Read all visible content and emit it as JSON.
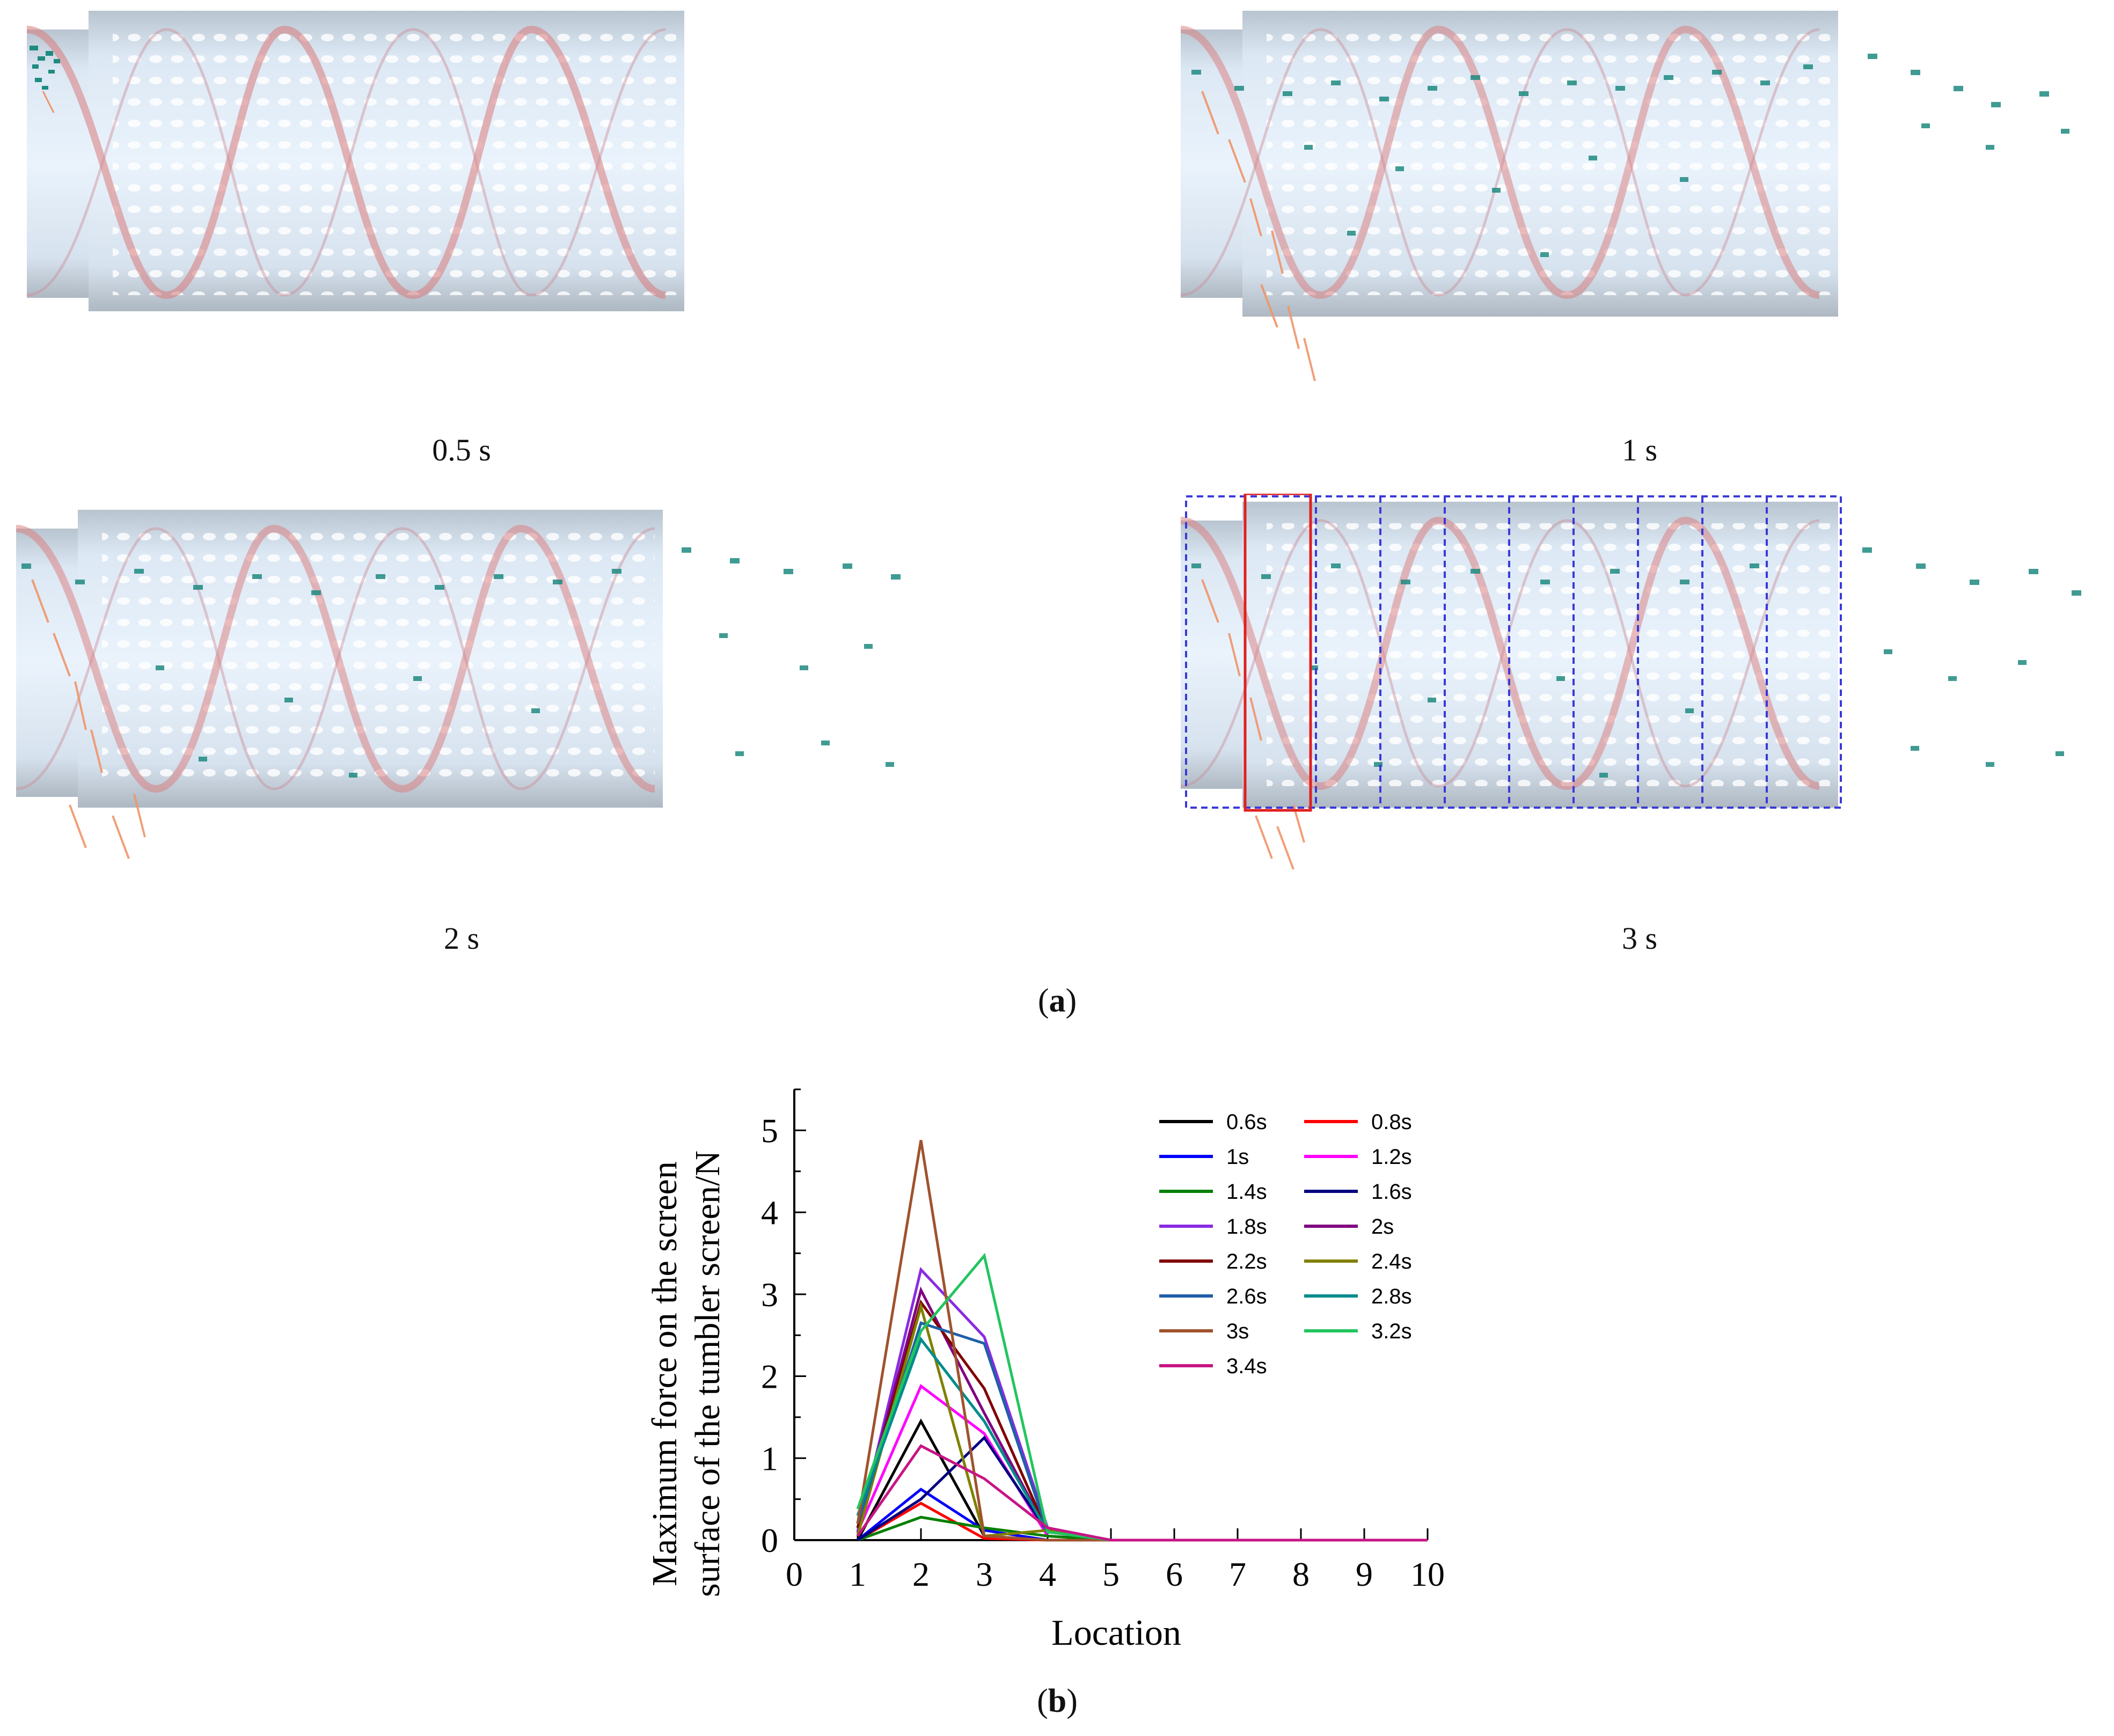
{
  "panel_a": {
    "label": "a",
    "snapshots": [
      {
        "caption": "0.5 s"
      },
      {
        "caption": "1 s"
      },
      {
        "caption": "2 s"
      },
      {
        "caption": "3 s"
      }
    ],
    "colors": {
      "drum": "#c9d6e2",
      "helix": "#d97a7a",
      "particle_teal": "#1f8a80",
      "particle_orange": "#f0956a",
      "grid_box": "#3a3ad8",
      "highlight_box": "#e02020"
    }
  },
  "panel_b": {
    "label": "b"
  },
  "chart_data": {
    "type": "line",
    "title": "",
    "xlabel": "Location",
    "ylabel": "Maximum force on the screen surface of the tumbler screen/N",
    "ylabel_lines": [
      "Maximum force on the screen",
      "surface of the tumbler screen/N"
    ],
    "xlim": [
      0,
      10
    ],
    "ylim": [
      0,
      5.5
    ],
    "xticks": [
      "0",
      "1",
      "2",
      "3",
      "4",
      "5",
      "6",
      "7",
      "8",
      "9",
      "10"
    ],
    "yticks": [
      "0",
      "1",
      "2",
      "3",
      "4",
      "5"
    ],
    "x": [
      1,
      2,
      3,
      4,
      5,
      6,
      7,
      8,
      9,
      10
    ],
    "legend_position": "top-right",
    "series": [
      {
        "name": "0.6s",
        "color": "#000000",
        "values": [
          0,
          1.45,
          0.05,
          0,
          0,
          0,
          0,
          0,
          0,
          0
        ]
      },
      {
        "name": "0.8s",
        "color": "#ff0000",
        "values": [
          0,
          0.45,
          0.02,
          0,
          0,
          0,
          0,
          0,
          0,
          0
        ]
      },
      {
        "name": "1s",
        "color": "#0000ff",
        "values": [
          0,
          0.62,
          0.12,
          0,
          0,
          0,
          0,
          0,
          0,
          0
        ]
      },
      {
        "name": "1.2s",
        "color": "#ff00ff",
        "values": [
          0.1,
          1.88,
          1.3,
          0.05,
          0,
          0,
          0,
          0,
          0,
          0
        ]
      },
      {
        "name": "1.4s",
        "color": "#008000",
        "values": [
          0,
          0.28,
          0.15,
          0.05,
          0,
          0,
          0,
          0,
          0,
          0
        ]
      },
      {
        "name": "1.6s",
        "color": "#000080",
        "values": [
          0,
          0.5,
          1.25,
          0.1,
          0,
          0,
          0,
          0,
          0,
          0
        ]
      },
      {
        "name": "1.8s",
        "color": "#8a2be2",
        "values": [
          0.1,
          3.3,
          2.48,
          0.15,
          0,
          0,
          0,
          0,
          0,
          0
        ]
      },
      {
        "name": "2s",
        "color": "#800080",
        "values": [
          0.15,
          3.05,
          1.55,
          0.1,
          0,
          0,
          0,
          0,
          0,
          0
        ]
      },
      {
        "name": "2.2s",
        "color": "#800000",
        "values": [
          0.15,
          2.9,
          1.85,
          0.1,
          0,
          0,
          0,
          0,
          0,
          0
        ]
      },
      {
        "name": "2.4s",
        "color": "#808000",
        "values": [
          0.05,
          2.85,
          0.05,
          0.12,
          0,
          0,
          0,
          0,
          0,
          0
        ]
      },
      {
        "name": "2.6s",
        "color": "#1f5fa8",
        "values": [
          0.2,
          2.65,
          2.4,
          0.1,
          0,
          0,
          0,
          0,
          0,
          0
        ]
      },
      {
        "name": "2.8s",
        "color": "#008b8b",
        "values": [
          0.3,
          2.45,
          1.45,
          0.1,
          0,
          0,
          0,
          0,
          0,
          0
        ]
      },
      {
        "name": "3s",
        "color": "#a0522d",
        "values": [
          0.2,
          4.88,
          0.05,
          0,
          0,
          0,
          0,
          0,
          0,
          0
        ]
      },
      {
        "name": "3.2s",
        "color": "#22c55e",
        "values": [
          0.38,
          2.55,
          3.47,
          0.1,
          0,
          0,
          0,
          0,
          0,
          0
        ]
      },
      {
        "name": "3.4s",
        "color": "#c71585",
        "values": [
          0.05,
          1.15,
          0.75,
          0.15,
          0,
          0,
          0,
          0,
          0,
          0
        ]
      }
    ]
  }
}
